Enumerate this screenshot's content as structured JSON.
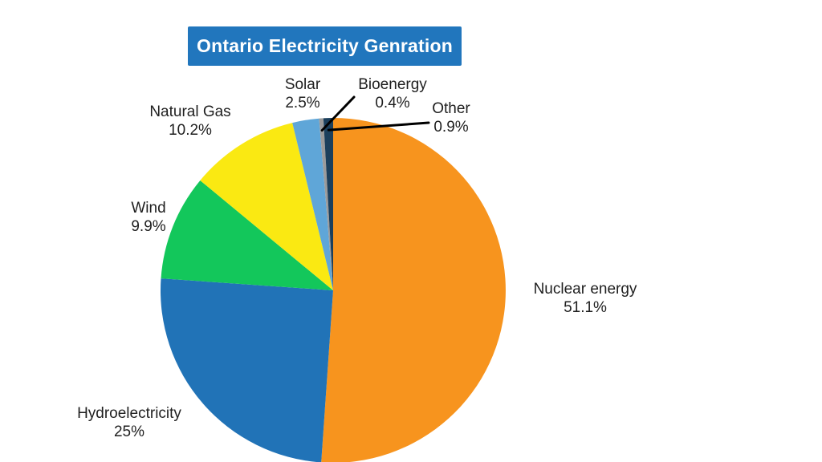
{
  "title_box": {
    "text": "Ontario Electricity Genration",
    "bg_color": "#2176BD",
    "text_color": "#FFFFFF"
  },
  "chart_data": {
    "type": "pie",
    "title": "Ontario Electricity Genration",
    "direction": "clockwise",
    "start_angle_deg": 0,
    "legend_position": "none",
    "label_style": "outside labels with percent",
    "background_color": "#FFFFFF",
    "label_text_color": "#1F1F1F",
    "leader_line_color": "#000000",
    "slices": [
      {
        "label": "Nuclear energy",
        "value": 51.1,
        "display": "51.1%",
        "color": "#F7941E",
        "leader_line": false
      },
      {
        "label": "Hydroelectricity",
        "value": 25,
        "display": "25%",
        "color": "#2173B7",
        "leader_line": false
      },
      {
        "label": "Wind",
        "value": 9.9,
        "display": "9.9%",
        "color": "#13C75B",
        "leader_line": false
      },
      {
        "label": "Natural Gas",
        "value": 10.2,
        "display": "10.2%",
        "color": "#FAE912",
        "leader_line": false
      },
      {
        "label": "Solar",
        "value": 2.5,
        "display": "2.5%",
        "color": "#5FA6D8",
        "leader_line": false
      },
      {
        "label": "Bioenergy",
        "value": 0.4,
        "display": "0.4%",
        "color": "#9B9B9B",
        "leader_line": true
      },
      {
        "label": "Other",
        "value": 0.9,
        "display": "0.9%",
        "color": "#1B3F5C",
        "leader_line": true
      }
    ]
  }
}
